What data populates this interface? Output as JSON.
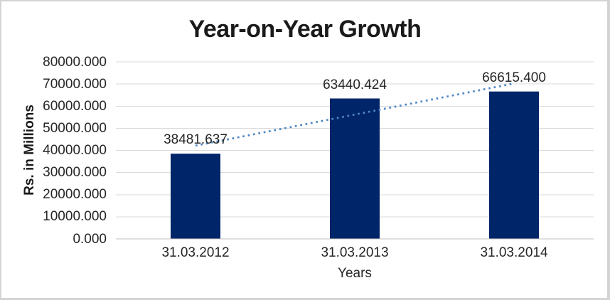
{
  "frame": {
    "background": "#ffffff",
    "border_color": "#d4d4d4"
  },
  "chart_data": {
    "type": "bar",
    "title": "Year-on-Year Growth",
    "xlabel": "Years",
    "ylabel": "Rs. in Millions",
    "categories": [
      "31.03.2012",
      "31.03.2013",
      "31.03.2014"
    ],
    "values": [
      38481.637,
      63440.424,
      66615.4
    ],
    "data_labels": [
      "38481.637",
      "63440.424",
      "66615.400"
    ],
    "ylim": [
      0,
      80000
    ],
    "ytick_step": 10000,
    "ytick_decimals": 3,
    "ytick_labels": [
      "0.000",
      "10000.000",
      "20000.000",
      "30000.000",
      "40000.000",
      "50000.000",
      "60000.000",
      "70000.000",
      "80000.000"
    ],
    "grid": true,
    "legend": false,
    "legend_position": "none",
    "bar_color": "#012569",
    "gridline_color": "#d9d9d9",
    "axis_line_color": "#bdbdbd",
    "text_color": "#262626",
    "title_color": "#1a1a1a",
    "trendline": {
      "type": "linear",
      "style": "dotted",
      "color": "#4e86c6"
    }
  }
}
